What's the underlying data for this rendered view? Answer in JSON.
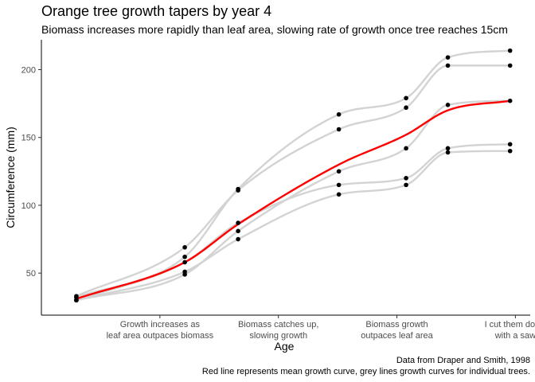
{
  "chart_data": {
    "type": "scatter",
    "title": "Orange tree growth tapers by year 4",
    "subtitle": "Biomass increases more rapidly than leaf area, slowing rate of growth once tree reaches 15cm",
    "xlabel": "Age",
    "ylabel": "Circumference (mm)",
    "caption": [
      "Data from Draper and Smith, 1998",
      "Red line represents mean growth curve, grey lines growth curves for individual trees."
    ],
    "x_tick_values": [
      400,
      800,
      1200,
      1600
    ],
    "x_tick_labels": [
      [
        "Growth increases as",
        "leaf area outpaces biomass"
      ],
      [
        "Biomass catches up,",
        "slowing growth"
      ],
      [
        "Biomass growth",
        "outpaces leaf area"
      ],
      [
        "I cut them down",
        "with a saw"
      ]
    ],
    "y_ticks": [
      50,
      100,
      150,
      200
    ],
    "xlim": [
      0,
      1650
    ],
    "ylim": [
      19,
      222
    ],
    "grid": false,
    "colors": {
      "mean_line": "#ff0000",
      "tree_lines": "#d3d3d3",
      "points": "#000000"
    },
    "ages": [
      118,
      484,
      664,
      1004,
      1231,
      1372,
      1582
    ],
    "trees": [
      {
        "values": [
          30,
          58,
          87,
          115,
          120,
          142,
          145
        ]
      },
      {
        "values": [
          33,
          69,
          111,
          156,
          172,
          203,
          203
        ]
      },
      {
        "values": [
          30,
          51,
          75,
          108,
          115,
          139,
          140
        ]
      },
      {
        "values": [
          32,
          62,
          112,
          167,
          179,
          209,
          214
        ]
      },
      {
        "values": [
          30,
          49,
          81,
          125,
          142,
          174,
          177
        ]
      }
    ],
    "mean_curve": {
      "values": [
        31,
        58,
        86,
        130,
        152,
        170,
        177
      ]
    }
  }
}
